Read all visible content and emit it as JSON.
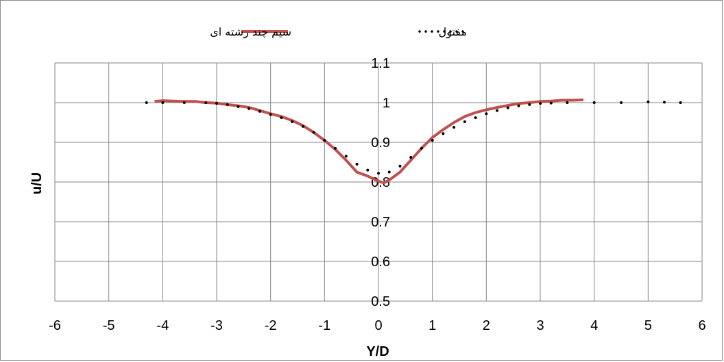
{
  "chart_data": {
    "type": "line",
    "xlabel": "Y/D",
    "ylabel": "u/U",
    "xlim": [
      -6,
      6
    ],
    "ylim": [
      0.5,
      1.1
    ],
    "x_ticks": [
      "-6",
      "-5",
      "-4",
      "-3",
      "-2",
      "-1",
      "0",
      "1",
      "2",
      "3",
      "4",
      "5",
      "6"
    ],
    "y_ticks": [
      "0.5",
      "0.6",
      "0.7",
      "0.8",
      "0.9",
      "1",
      "1.1"
    ],
    "grid": true,
    "legend_position": "top",
    "series": [
      {
        "name": "سیم چند رشته ای",
        "color": "#c0504d",
        "style": "solid",
        "x": [
          -4.15,
          -4.0,
          -3.8,
          -3.6,
          -3.4,
          -3.2,
          -3.0,
          -2.8,
          -2.6,
          -2.4,
          -2.2,
          -2.0,
          -1.8,
          -1.6,
          -1.4,
          -1.2,
          -1.0,
          -0.8,
          -0.6,
          -0.4,
          -0.2,
          0.0,
          0.1,
          0.2,
          0.4,
          0.6,
          0.8,
          1.0,
          1.2,
          1.4,
          1.6,
          1.8,
          2.0,
          2.2,
          2.4,
          2.6,
          2.8,
          3.0,
          3.2,
          3.4,
          3.6,
          3.8
        ],
        "y": [
          1.003,
          1.005,
          1.004,
          1.003,
          1.003,
          1.0,
          0.999,
          0.995,
          0.992,
          0.988,
          0.98,
          0.972,
          0.965,
          0.955,
          0.942,
          0.925,
          0.905,
          0.882,
          0.855,
          0.825,
          0.815,
          0.802,
          0.798,
          0.805,
          0.825,
          0.855,
          0.885,
          0.912,
          0.932,
          0.95,
          0.965,
          0.975,
          0.982,
          0.988,
          0.993,
          0.998,
          1.0,
          1.003,
          1.004,
          1.006,
          1.006,
          1.007
        ]
      },
      {
        "name": "مفتول",
        "color": "#000000",
        "style": "dotted",
        "x": [
          -4.3,
          -4.0,
          -3.6,
          -3.2,
          -3.0,
          -2.8,
          -2.6,
          -2.4,
          -2.2,
          -2.0,
          -1.8,
          -1.6,
          -1.4,
          -1.2,
          -1.0,
          -0.8,
          -0.6,
          -0.4,
          -0.2,
          0.0,
          0.2,
          0.4,
          0.6,
          0.8,
          1.0,
          1.2,
          1.4,
          1.6,
          1.8,
          2.0,
          2.2,
          2.4,
          2.6,
          2.8,
          3.0,
          3.2,
          3.5,
          4.0,
          4.5,
          5.0,
          5.3,
          5.6
        ],
        "y": [
          1.0,
          1.0,
          1.0,
          1.0,
          0.998,
          0.995,
          0.99,
          0.985,
          0.978,
          0.97,
          0.962,
          0.952,
          0.94,
          0.925,
          0.905,
          0.885,
          0.865,
          0.845,
          0.83,
          0.822,
          0.825,
          0.84,
          0.862,
          0.885,
          0.905,
          0.922,
          0.938,
          0.952,
          0.962,
          0.972,
          0.98,
          0.987,
          0.992,
          0.995,
          0.998,
          0.999,
          1.0,
          1.0,
          1.0,
          1.002,
          1.001,
          1.0
        ]
      }
    ]
  }
}
